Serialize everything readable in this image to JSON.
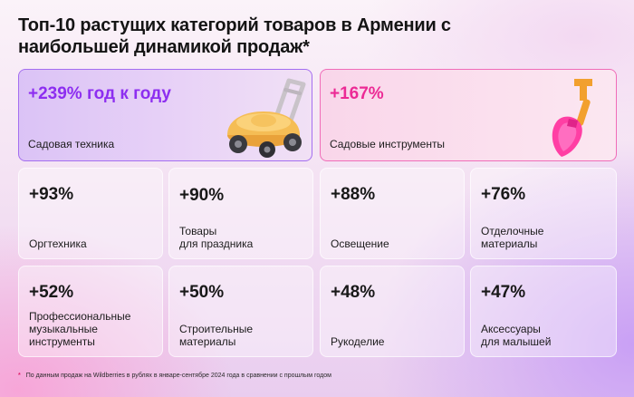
{
  "title": "Топ-10 растущих категорий товаров в Армении с наибольшей динамикой продаж*",
  "chart_data": {
    "type": "table",
    "categories": [
      "Садовая техника",
      "Садовые инструменты",
      "Оргтехника",
      "Товары для праздника",
      "Освещение",
      "Отделочные материалы",
      "Профессиональные музыкальные инструменты",
      "Строительные материалы",
      "Рукоделие",
      "Аксессуары для малышей"
    ],
    "values": [
      239,
      167,
      93,
      90,
      88,
      76,
      52,
      50,
      48,
      47
    ],
    "unit": "%"
  },
  "cards": [
    {
      "pct": "+239% год к году",
      "label": "Садовая техника"
    },
    {
      "pct": "+167%",
      "label": "Садовые инструменты"
    },
    {
      "pct": "+93%",
      "label": "Оргтехника"
    },
    {
      "pct": "+90%",
      "label": "Товары\nдля праздника"
    },
    {
      "pct": "+88%",
      "label": "Освещение"
    },
    {
      "pct": "+76%",
      "label": "Отделочные\nматериалы"
    },
    {
      "pct": "+52%",
      "label": "Профессиональные\nмузыкальные\nинструменты"
    },
    {
      "pct": "+50%",
      "label": "Строительные\nматериалы"
    },
    {
      "pct": "+48%",
      "label": "Рукоделие"
    },
    {
      "pct": "+47%",
      "label": "Аксессуары\nдля малышей"
    }
  ],
  "footnote": {
    "star": "*",
    "text": "По данным продаж на Wildberries в рублях в январе-сентябре 2024 года в сравнении с прошлым годом"
  },
  "icons": {
    "lawnmower": "lawnmower-icon",
    "shovel": "shovel-icon"
  },
  "colors": {
    "top1_accent": "#8d2ef0",
    "top2_accent": "#ec2a95"
  }
}
